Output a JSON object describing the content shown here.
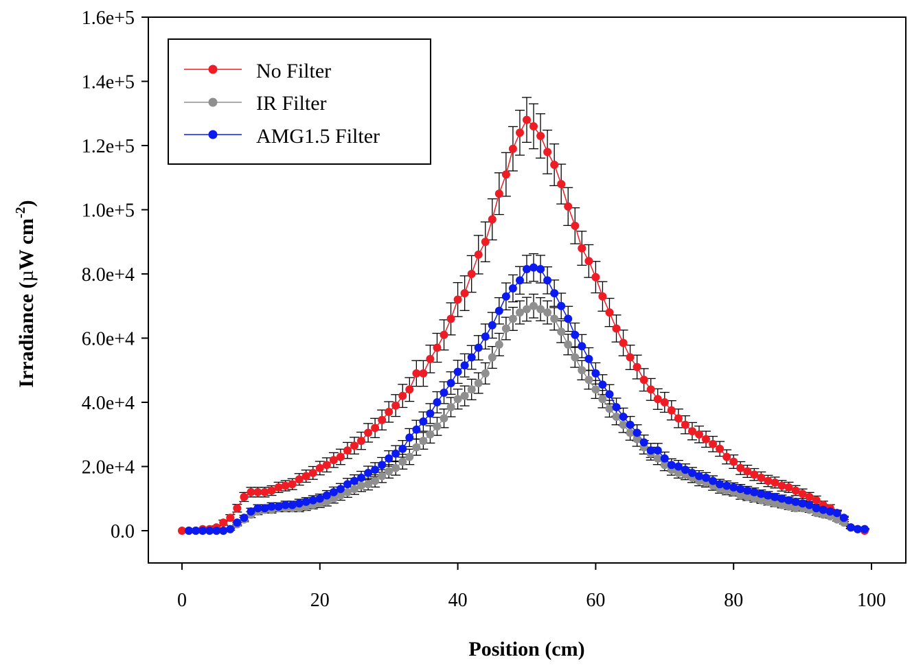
{
  "chart_data": {
    "type": "scatter",
    "xlabel": "Position (cm)",
    "ylabel_main": "Irradiance (",
    "ylabel_mu": "µ",
    "ylabel_unit": "W cm",
    "ylabel_sup": "-2",
    "ylabel_close": ")",
    "xlim": [
      -5,
      103
    ],
    "ylim": [
      -10000,
      160000
    ],
    "xticks": [
      0,
      20,
      40,
      60,
      80,
      100
    ],
    "xtick_labels": [
      "0",
      "20",
      "40",
      "60",
      "80",
      "100"
    ],
    "yticks": [
      0,
      20000,
      40000,
      60000,
      80000,
      100000,
      120000,
      140000,
      160000
    ],
    "ytick_labels": [
      "0.0",
      "2.0e+4",
      "4.0e+4",
      "6.0e+4",
      "8.0e+4",
      "1.0e+5",
      "1.2e+5",
      "1.4e+5",
      "1.6e+5"
    ],
    "grid": false,
    "legend_position": "top-left",
    "series": [
      {
        "name": "No Filter",
        "color": "#ee1c24",
        "x": [
          0,
          1,
          2,
          3,
          4,
          5,
          6,
          7,
          8,
          9,
          10,
          11,
          12,
          13,
          14,
          15,
          16,
          17,
          18,
          19,
          20,
          21,
          22,
          23,
          24,
          25,
          26,
          27,
          28,
          29,
          30,
          31,
          32,
          33,
          34,
          35,
          36,
          37,
          38,
          39,
          40,
          41,
          42,
          43,
          44,
          45,
          46,
          47,
          48,
          49,
          50,
          51,
          52,
          53,
          54,
          55,
          56,
          57,
          58,
          59,
          60,
          61,
          62,
          63,
          64,
          65,
          66,
          67,
          68,
          69,
          70,
          71,
          72,
          73,
          74,
          75,
          76,
          77,
          78,
          79,
          80,
          81,
          82,
          83,
          84,
          85,
          86,
          87,
          88,
          89,
          90,
          91,
          92,
          93,
          94,
          95,
          96,
          97,
          98,
          99
        ],
        "y": [
          0,
          0,
          0,
          500,
          500,
          1000,
          2500,
          4000,
          7000,
          10500,
          12000,
          12000,
          12000,
          12500,
          13500,
          14000,
          14500,
          16000,
          17000,
          18000,
          19500,
          20500,
          22000,
          23000,
          25000,
          26500,
          28000,
          30500,
          32000,
          34500,
          37000,
          39000,
          42000,
          44000,
          49000,
          49000,
          53500,
          57000,
          61000,
          66000,
          72000,
          74000,
          80000,
          86000,
          90000,
          97000,
          105000,
          111000,
          119000,
          124000,
          128000,
          126000,
          123000,
          118000,
          114000,
          108000,
          101000,
          95000,
          88000,
          84000,
          79000,
          73000,
          68000,
          63000,
          58500,
          54000,
          51000,
          47000,
          44000,
          41000,
          40000,
          37500,
          35000,
          33000,
          31000,
          30000,
          28500,
          27000,
          25500,
          23000,
          21500,
          19500,
          18500,
          17500,
          16500,
          15500,
          15000,
          14000,
          13500,
          12500,
          11500,
          10500,
          9500,
          8000,
          7000,
          5500,
          3500,
          1000,
          500,
          0
        ],
        "err": [
          0,
          0,
          0,
          300,
          300,
          500,
          800,
          1000,
          1200,
          1400,
          1500,
          1500,
          1500,
          1500,
          1600,
          1600,
          1700,
          1800,
          1900,
          2000,
          2100,
          2200,
          2300,
          2400,
          2500,
          2600,
          2700,
          2900,
          3000,
          3100,
          3200,
          3400,
          3600,
          3700,
          4000,
          4000,
          4300,
          4500,
          4700,
          5000,
          5300,
          5400,
          5700,
          6000,
          6200,
          6400,
          6500,
          6800,
          6900,
          7000,
          7000,
          7000,
          6900,
          6800,
          6500,
          6200,
          5900,
          5600,
          5300,
          5100,
          4900,
          4600,
          4400,
          4200,
          4000,
          3800,
          3700,
          3500,
          3400,
          3200,
          3100,
          3000,
          2900,
          2800,
          2700,
          2600,
          2500,
          2400,
          2300,
          2200,
          2100,
          2000,
          1900,
          1850,
          1800,
          1750,
          1700,
          1650,
          1600,
          1550,
          1500,
          1400,
          1300,
          1200,
          1100,
          900,
          700,
          400,
          300,
          0
        ]
      },
      {
        "name": "IR Filter",
        "color": "#8f8f8f",
        "x": [
          1,
          2,
          3,
          4,
          5,
          6,
          7,
          8,
          9,
          10,
          11,
          12,
          13,
          14,
          15,
          16,
          17,
          18,
          19,
          20,
          21,
          22,
          23,
          24,
          25,
          26,
          27,
          28,
          29,
          30,
          31,
          32,
          33,
          34,
          35,
          36,
          37,
          38,
          39,
          40,
          41,
          42,
          43,
          44,
          45,
          46,
          47,
          48,
          49,
          50,
          51,
          52,
          53,
          54,
          55,
          56,
          57,
          58,
          59,
          60,
          61,
          62,
          63,
          64,
          65,
          66,
          67,
          68,
          69,
          70,
          71,
          72,
          73,
          74,
          75,
          76,
          77,
          78,
          79,
          80,
          81,
          82,
          83,
          84,
          85,
          86,
          87,
          88,
          89,
          90,
          91,
          92,
          93,
          94,
          95,
          96,
          97,
          98,
          99
        ],
        "y": [
          0,
          0,
          0,
          0,
          0,
          0,
          500,
          2000,
          3500,
          5000,
          6000,
          6500,
          6500,
          7000,
          7000,
          7000,
          7000,
          7500,
          8000,
          8500,
          9000,
          10000,
          11000,
          12000,
          13000,
          14000,
          14500,
          15500,
          17000,
          18500,
          19500,
          21500,
          23000,
          26000,
          28000,
          30000,
          32500,
          35000,
          38500,
          41000,
          42000,
          44000,
          46000,
          49000,
          54000,
          58000,
          63000,
          66000,
          68000,
          69000,
          70000,
          69000,
          68000,
          66000,
          62000,
          58000,
          54000,
          50000,
          47000,
          44000,
          41000,
          38000,
          35500,
          33000,
          30500,
          28500,
          26000,
          24000,
          22500,
          20500,
          19000,
          18000,
          17500,
          16500,
          15500,
          15000,
          14000,
          13000,
          12500,
          12000,
          11000,
          10500,
          10000,
          9500,
          9000,
          8500,
          8000,
          7500,
          7000,
          7000,
          6500,
          5500,
          5000,
          4500,
          3500,
          2500,
          1000,
          500,
          500
        ],
        "err": [
          0,
          0,
          0,
          0,
          0,
          0,
          300,
          500,
          700,
          900,
          1000,
          1000,
          1000,
          1100,
          1100,
          1100,
          1100,
          1200,
          1200,
          1300,
          1300,
          1400,
          1500,
          1600,
          1700,
          1800,
          1800,
          1900,
          2000,
          2100,
          2200,
          2300,
          2400,
          2500,
          2600,
          2700,
          2800,
          2900,
          3000,
          3100,
          3100,
          3200,
          3200,
          3300,
          3400,
          3500,
          3500,
          3600,
          3600,
          3700,
          3700,
          3600,
          3600,
          3500,
          3400,
          3200,
          3100,
          3000,
          2900,
          2800,
          2700,
          2600,
          2500,
          2400,
          2300,
          2200,
          2100,
          2000,
          1900,
          1800,
          1700,
          1600,
          1600,
          1500,
          1500,
          1400,
          1400,
          1300,
          1300,
          1200,
          1200,
          1100,
          1100,
          1000,
          1000,
          1000,
          900,
          900,
          900,
          800,
          800,
          700,
          700,
          600,
          500,
          400,
          300,
          200,
          200
        ]
      },
      {
        "name": "AMG1.5 Filter",
        "color": "#0b1bf0",
        "x": [
          1,
          2,
          3,
          4,
          5,
          6,
          7,
          8,
          9,
          10,
          11,
          12,
          13,
          14,
          15,
          16,
          17,
          18,
          19,
          20,
          21,
          22,
          23,
          24,
          25,
          26,
          27,
          28,
          29,
          30,
          31,
          32,
          33,
          34,
          35,
          36,
          37,
          38,
          39,
          40,
          41,
          42,
          43,
          44,
          45,
          46,
          47,
          48,
          49,
          50,
          51,
          52,
          53,
          54,
          55,
          56,
          57,
          58,
          59,
          60,
          61,
          62,
          63,
          64,
          65,
          66,
          67,
          68,
          69,
          70,
          71,
          72,
          73,
          74,
          75,
          76,
          77,
          78,
          79,
          80,
          81,
          82,
          83,
          84,
          85,
          86,
          87,
          88,
          89,
          90,
          91,
          92,
          93,
          94,
          95,
          96,
          97,
          98,
          99
        ],
        "y": [
          0,
          0,
          0,
          0,
          0,
          0,
          500,
          2500,
          4000,
          6000,
          7000,
          7000,
          7500,
          7500,
          8000,
          8000,
          8500,
          9000,
          9500,
          10000,
          11000,
          12000,
          13000,
          14500,
          15500,
          16500,
          18000,
          19000,
          20500,
          22500,
          24000,
          25500,
          29000,
          31500,
          34000,
          36500,
          40000,
          43000,
          46000,
          49500,
          51500,
          54000,
          57000,
          60500,
          64000,
          68500,
          73000,
          75500,
          78000,
          81500,
          82000,
          81500,
          78000,
          74000,
          70000,
          66000,
          61000,
          57500,
          53500,
          49000,
          45500,
          42500,
          38500,
          35500,
          33000,
          30500,
          27500,
          25000,
          25000,
          22500,
          20500,
          20000,
          19000,
          18000,
          17000,
          16500,
          15500,
          14500,
          14000,
          13500,
          13000,
          12500,
          12000,
          11500,
          11000,
          10500,
          10000,
          9500,
          9000,
          8500,
          8000,
          7000,
          6500,
          6000,
          5500,
          4000,
          1000,
          500,
          500
        ],
        "err": [
          0,
          0,
          0,
          0,
          0,
          0,
          300,
          600,
          800,
          1000,
          1100,
          1100,
          1200,
          1200,
          1200,
          1200,
          1300,
          1300,
          1400,
          1400,
          1500,
          1600,
          1700,
          1800,
          1900,
          2000,
          2100,
          2200,
          2300,
          2400,
          2500,
          2600,
          2800,
          2900,
          3000,
          3100,
          3300,
          3400,
          3500,
          3600,
          3600,
          3700,
          3800,
          3900,
          4000,
          4100,
          4200,
          4200,
          4300,
          4300,
          4300,
          4300,
          4200,
          4100,
          4000,
          3900,
          3700,
          3600,
          3500,
          3300,
          3100,
          3000,
          2800,
          2700,
          2600,
          2500,
          2300,
          2200,
          2200,
          2000,
          1900,
          1900,
          1800,
          1700,
          1700,
          1600,
          1600,
          1500,
          1500,
          1400,
          1400,
          1300,
          1300,
          1200,
          1200,
          1100,
          1100,
          1000,
          1000,
          900,
          900,
          800,
          800,
          700,
          600,
          500,
          300,
          200,
          200
        ]
      }
    ]
  }
}
